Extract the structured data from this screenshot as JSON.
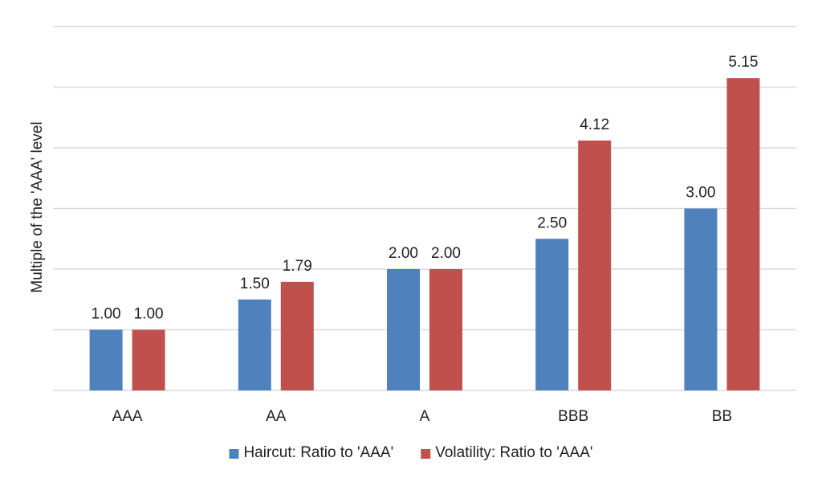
{
  "chart_data": {
    "type": "bar",
    "title": "",
    "xlabel": "",
    "ylabel": "Multiple of the 'AAA' level",
    "categories": [
      "AAA",
      "AA",
      "A",
      "BBB",
      "BB"
    ],
    "series": [
      {
        "name": "Haircut: Ratio to 'AAA'",
        "color": "#4f81bd",
        "values": [
          1.0,
          1.5,
          2.0,
          2.5,
          3.0
        ]
      },
      {
        "name": "Volatility: Ratio to 'AAA'",
        "color": "#c0504d",
        "values": [
          1.0,
          1.79,
          2.0,
          4.12,
          5.15
        ]
      }
    ],
    "ylim": [
      0,
      6
    ],
    "y_tick_labels_shown": false,
    "grid": true,
    "legend": "bottom",
    "value_format": "2 decimals"
  }
}
